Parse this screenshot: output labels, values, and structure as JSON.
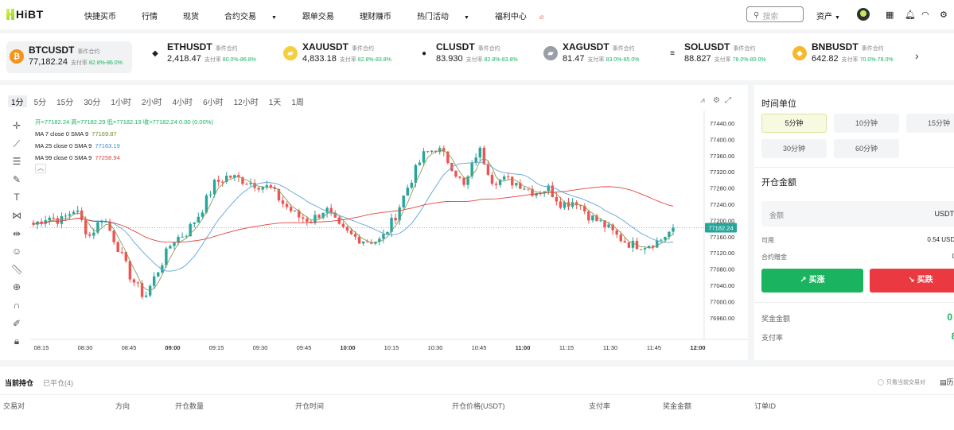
{
  "app": {
    "logo": "HiBT"
  },
  "nav": [
    {
      "label": "快捷买币",
      "dropdown": false
    },
    {
      "label": "行情",
      "dropdown": false
    },
    {
      "label": "现货",
      "dropdown": false
    },
    {
      "label": "合约交易",
      "dropdown": true
    },
    {
      "label": "跟单交易",
      "dropdown": false
    },
    {
      "label": "理财赚币",
      "dropdown": false
    },
    {
      "label": "热门活动",
      "dropdown": true
    },
    {
      "label": "福利中心",
      "dropdown": false
    }
  ],
  "header": {
    "search_placeholder": "搜索",
    "assets_label": "资产"
  },
  "tickers": [
    {
      "symbol": "BTCUSDT",
      "tag": "事件合约",
      "price": "77,182.24",
      "rate_label": "支付率",
      "rate": "82.8%-86.0%",
      "color": "#f7931a",
      "glyph": "₿"
    },
    {
      "symbol": "ETHUSDT",
      "tag": "事件合约",
      "price": "2,418.47",
      "rate_label": "支付率",
      "rate": "80.0%-86.8%",
      "color": "#ffffff",
      "glyph": "◆"
    },
    {
      "symbol": "XAUUSDT",
      "tag": "事件合约",
      "price": "4,833.18",
      "rate_label": "支付率",
      "rate": "82.8%-83.8%",
      "color": "#f5cf3d",
      "glyph": "▰"
    },
    {
      "symbol": "CLUSDT",
      "tag": "事件合约",
      "price": "83.930",
      "rate_label": "支付率",
      "rate": "82.8%-83.8%",
      "color": "#ffffff",
      "glyph": "●"
    },
    {
      "symbol": "XAGUSDT",
      "tag": "事件合约",
      "price": "81.47",
      "rate_label": "支付率",
      "rate": "83.0%-85.0%",
      "color": "#9a9ea6",
      "glyph": "▰"
    },
    {
      "symbol": "SOLUSDT",
      "tag": "事件合约",
      "price": "88.827",
      "rate_label": "支付率",
      "rate": "78.0%-80.0%",
      "color": "#ffffff",
      "glyph": "≡"
    },
    {
      "symbol": "BNBUSDT",
      "tag": "事件合约",
      "price": "642.82",
      "rate_label": "支付率",
      "rate": "70.0%-78.0%",
      "color": "#f3ba2f",
      "glyph": "◆"
    }
  ],
  "chart": {
    "timeframes": [
      "1分",
      "5分",
      "15分",
      "30分",
      "1小时",
      "2小时",
      "4小时",
      "6小时",
      "12小时",
      "1天",
      "1周"
    ],
    "active_timeframe": "1分",
    "ohlc_line": "开=77182.24 高=77182.29 低=77182.19 收=77182.24 0.00 (0.00%)",
    "ma7_label": "MA 7 close 0 SMA 9",
    "ma7_value": "77169.87",
    "ma25_label": "MA 25 close 0 SMA 9",
    "ma25_value": "77163.19",
    "ma99_label": "MA 99 close 0 SMA 9",
    "ma99_value": "77258.94",
    "current_price": "77182.24"
  },
  "chart_data": {
    "type": "candlestick",
    "y_ticks": [
      "77440.00",
      "77400.00",
      "77360.00",
      "77320.00",
      "77280.00",
      "77240.00",
      "77200.00",
      "77160.00",
      "77120.00",
      "77080.00",
      "77040.00",
      "77000.00",
      "76960.00"
    ],
    "x_ticks": [
      "08:15",
      "08:30",
      "08:45",
      "09:00",
      "09:15",
      "09:30",
      "09:45",
      "10:00",
      "10:15",
      "10:30",
      "10:45",
      "11:00",
      "11:15",
      "11:30",
      "11:45",
      "12:00"
    ],
    "x_ticks_bold": [
      "09:00",
      "10:00",
      "11:00",
      "12:00"
    ],
    "ylim": [
      76950,
      77450
    ],
    "price_anchors_close": [
      77190,
      77210,
      77200,
      77230,
      77160,
      77210,
      77140,
      77060,
      77010,
      77080,
      77150,
      77170,
      77220,
      77290,
      77310,
      77300,
      77290,
      77280,
      77240,
      77210,
      77200,
      77230,
      77180,
      77160,
      77150,
      77150,
      77210,
      77290,
      77360,
      77380,
      77340,
      77280,
      77380,
      77300,
      77300,
      77290,
      77270,
      77280,
      77240,
      77250,
      77210,
      77190,
      77160,
      77140,
      77140,
      77150,
      77180
    ],
    "colors": {
      "up": "#26a69a",
      "down": "#ef5350",
      "ma7": "#8a9a5b",
      "ma25": "#5ea5d8",
      "ma99": "#e0443c"
    }
  },
  "sidebar": {
    "time_unit_title": "时间单位",
    "units": [
      "5分钟",
      "10分钟",
      "15分钟",
      "30分钟",
      "60分钟"
    ],
    "active_unit": "5分钟",
    "amount_title": "开仓金额",
    "amount_placeholder": "金额",
    "amount_unit": "USDT",
    "available_label": "可用",
    "available_value": "0.54 USDT",
    "limit_label": "合约赠金",
    "limit_value": "0",
    "buy_label": "↗ 买涨",
    "sell_label": "↘ 买跌",
    "bonus_label": "奖金金额",
    "bonus_value": "0 U",
    "payout_label": "支付率",
    "payout_value": "82"
  },
  "positions": {
    "tabs": [
      "当前持仓",
      "已平仓(4)"
    ],
    "hint": "只看当前交易对",
    "history": "历",
    "headers": [
      "交易对",
      "方向",
      "开仓数量",
      "开仓时间",
      "开仓价格(USDT)",
      "支付率",
      "奖金金额",
      "订单ID"
    ]
  }
}
